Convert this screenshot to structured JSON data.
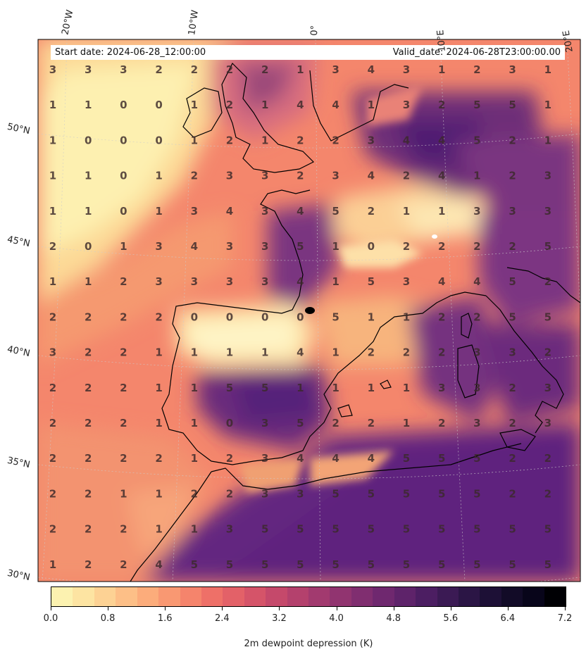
{
  "header": {
    "start_date": "Start date: 2024-06-28_12:00:00",
    "valid_date": "Valid_date: 2024-06-28T23:00:00.00"
  },
  "lon_labels": [
    "20°W",
    "10°W",
    "0°",
    "10°E",
    "20°E"
  ],
  "lat_labels": [
    "50°N",
    "45°N",
    "40°N",
    "35°N",
    "30°N"
  ],
  "grid_values": [
    [
      3,
      3,
      3,
      2,
      2,
      2,
      2,
      1,
      3,
      4,
      3,
      1,
      2,
      3,
      1
    ],
    [
      1,
      1,
      0,
      0,
      1,
      2,
      1,
      4,
      4,
      1,
      3,
      2,
      5,
      5,
      1
    ],
    [
      1,
      0,
      0,
      0,
      1,
      2,
      1,
      2,
      2,
      3,
      4,
      4,
      5,
      2,
      1
    ],
    [
      1,
      1,
      0,
      1,
      2,
      3,
      3,
      2,
      3,
      4,
      2,
      4,
      1,
      2,
      3
    ],
    [
      1,
      1,
      0,
      1,
      3,
      4,
      3,
      4,
      5,
      2,
      1,
      1,
      3,
      3,
      3
    ],
    [
      2,
      0,
      1,
      3,
      4,
      3,
      3,
      5,
      1,
      0,
      2,
      2,
      2,
      2,
      5
    ],
    [
      1,
      1,
      2,
      3,
      3,
      3,
      3,
      4,
      1,
      5,
      3,
      4,
      4,
      5,
      2
    ],
    [
      2,
      2,
      2,
      2,
      0,
      0,
      0,
      0,
      5,
      1,
      1,
      2,
      2,
      5,
      5
    ],
    [
      3,
      2,
      2,
      1,
      1,
      1,
      1,
      4,
      1,
      2,
      2,
      2,
      3,
      3,
      2
    ],
    [
      2,
      2,
      2,
      1,
      1,
      5,
      5,
      1,
      1,
      1,
      1,
      3,
      3,
      2,
      3
    ],
    [
      2,
      2,
      2,
      1,
      1,
      0,
      3,
      5,
      2,
      2,
      1,
      2,
      3,
      2,
      3
    ],
    [
      2,
      2,
      2,
      2,
      1,
      2,
      3,
      4,
      4,
      4,
      5,
      5,
      5,
      2,
      2
    ],
    [
      2,
      2,
      1,
      1,
      2,
      2,
      3,
      3,
      5,
      5,
      5,
      5,
      5,
      2,
      2
    ],
    [
      2,
      2,
      2,
      1,
      1,
      3,
      5,
      5,
      5,
      5,
      5,
      5,
      5,
      5,
      5
    ],
    [
      1,
      2,
      2,
      4,
      5,
      5,
      5,
      5,
      5,
      5,
      5,
      5,
      5,
      5,
      5
    ]
  ],
  "colorbar": {
    "label": "2m dewpoint depression (K)",
    "ticks": [
      "0.0",
      "0.8",
      "1.6",
      "2.4",
      "3.2",
      "4.0",
      "4.8",
      "5.6",
      "6.4",
      "7.2"
    ],
    "colors": [
      "#fcf2b0",
      "#fde4a2",
      "#fdd294",
      "#fdbf87",
      "#fcac7b",
      "#f99872",
      "#f5846c",
      "#ee7068",
      "#e36168",
      "#d55469",
      "#c5496b",
      "#b4416d",
      "#a23a6f",
      "#913470",
      "#802e70",
      "#6f286f",
      "#5e236a",
      "#4c1e62",
      "#3b1a54",
      "#2b1545",
      "#1d1036",
      "#120b27",
      "#08051a",
      "#000004"
    ]
  }
}
